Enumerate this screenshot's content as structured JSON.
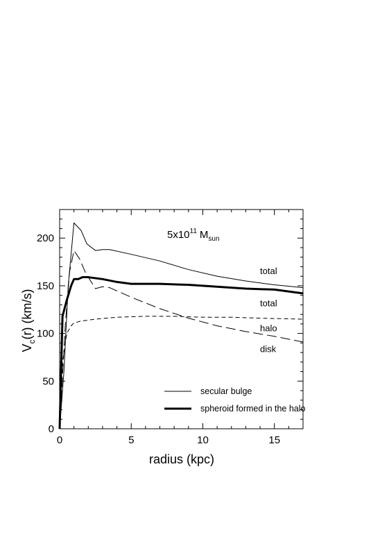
{
  "chart_data": {
    "type": "line",
    "title": "",
    "xlabel": "radius (kpc)",
    "ylabel_main": "V",
    "ylabel_sub": "c",
    "ylabel_rest": "(r) (km/s)",
    "xlim": [
      0,
      17
    ],
    "ylim": [
      0,
      230
    ],
    "xticks": [
      0,
      5,
      10,
      15
    ],
    "yticks": [
      0,
      50,
      100,
      150,
      200
    ],
    "mass_label": {
      "prefix": "5x10",
      "exp": "11",
      "unit": "M",
      "unit_sub": "sun"
    },
    "legend": {
      "placement": "bottom-right",
      "entries": [
        {
          "series": "secular_total",
          "label": "secular bulge"
        },
        {
          "series": "spheroid_total",
          "label": "spheroid formed in the halo"
        }
      ]
    },
    "annotations": [
      {
        "text": "total",
        "x": 14.0,
        "y": 166
      },
      {
        "text": "total",
        "x": 14.0,
        "y": 132
      },
      {
        "text": "halo",
        "x": 14.0,
        "y": 106
      },
      {
        "text": "disk",
        "x": 14.0,
        "y": 84
      }
    ],
    "series": [
      {
        "key": "secular_total",
        "style": "thin-solid",
        "x": [
          0,
          0.3,
          0.6,
          1.0,
          1.5,
          1.9,
          2.5,
          3.0,
          3.5,
          5,
          7,
          9,
          11,
          13,
          15,
          17
        ],
        "y": [
          0,
          60,
          150,
          216,
          208,
          194,
          187,
          188,
          188,
          183,
          176,
          167,
          160,
          155,
          151,
          148
        ]
      },
      {
        "key": "spheroid_total",
        "style": "thick-solid",
        "x": [
          0,
          0.2,
          0.5,
          0.8,
          1.0,
          1.3,
          1.6,
          2.0,
          3.0,
          4.0,
          5,
          7,
          9,
          11,
          13,
          15,
          17
        ],
        "y": [
          0,
          118,
          135,
          150,
          157,
          157,
          159,
          159,
          157,
          154,
          152,
          152,
          151,
          149,
          147,
          146,
          142
        ]
      },
      {
        "key": "secular_disk",
        "style": "long-dash",
        "x": [
          0,
          0.4,
          0.7,
          1.0,
          1.4,
          1.8,
          2.5,
          3.0,
          3.5,
          5,
          7,
          9,
          11,
          13,
          15,
          17
        ],
        "y": [
          0,
          110,
          165,
          187,
          178,
          164,
          147,
          149,
          148,
          138,
          126,
          116,
          108,
          102,
          97,
          91
        ]
      },
      {
        "key": "halo",
        "style": "short-dash",
        "x": [
          0,
          0.2,
          0.5,
          0.8,
          1.0,
          1.5,
          2.5,
          4,
          6,
          8,
          10,
          12,
          14,
          17
        ],
        "y": [
          0,
          70,
          100,
          108,
          111,
          113,
          115,
          117,
          118,
          118,
          117,
          117,
          116,
          115
        ]
      }
    ]
  }
}
